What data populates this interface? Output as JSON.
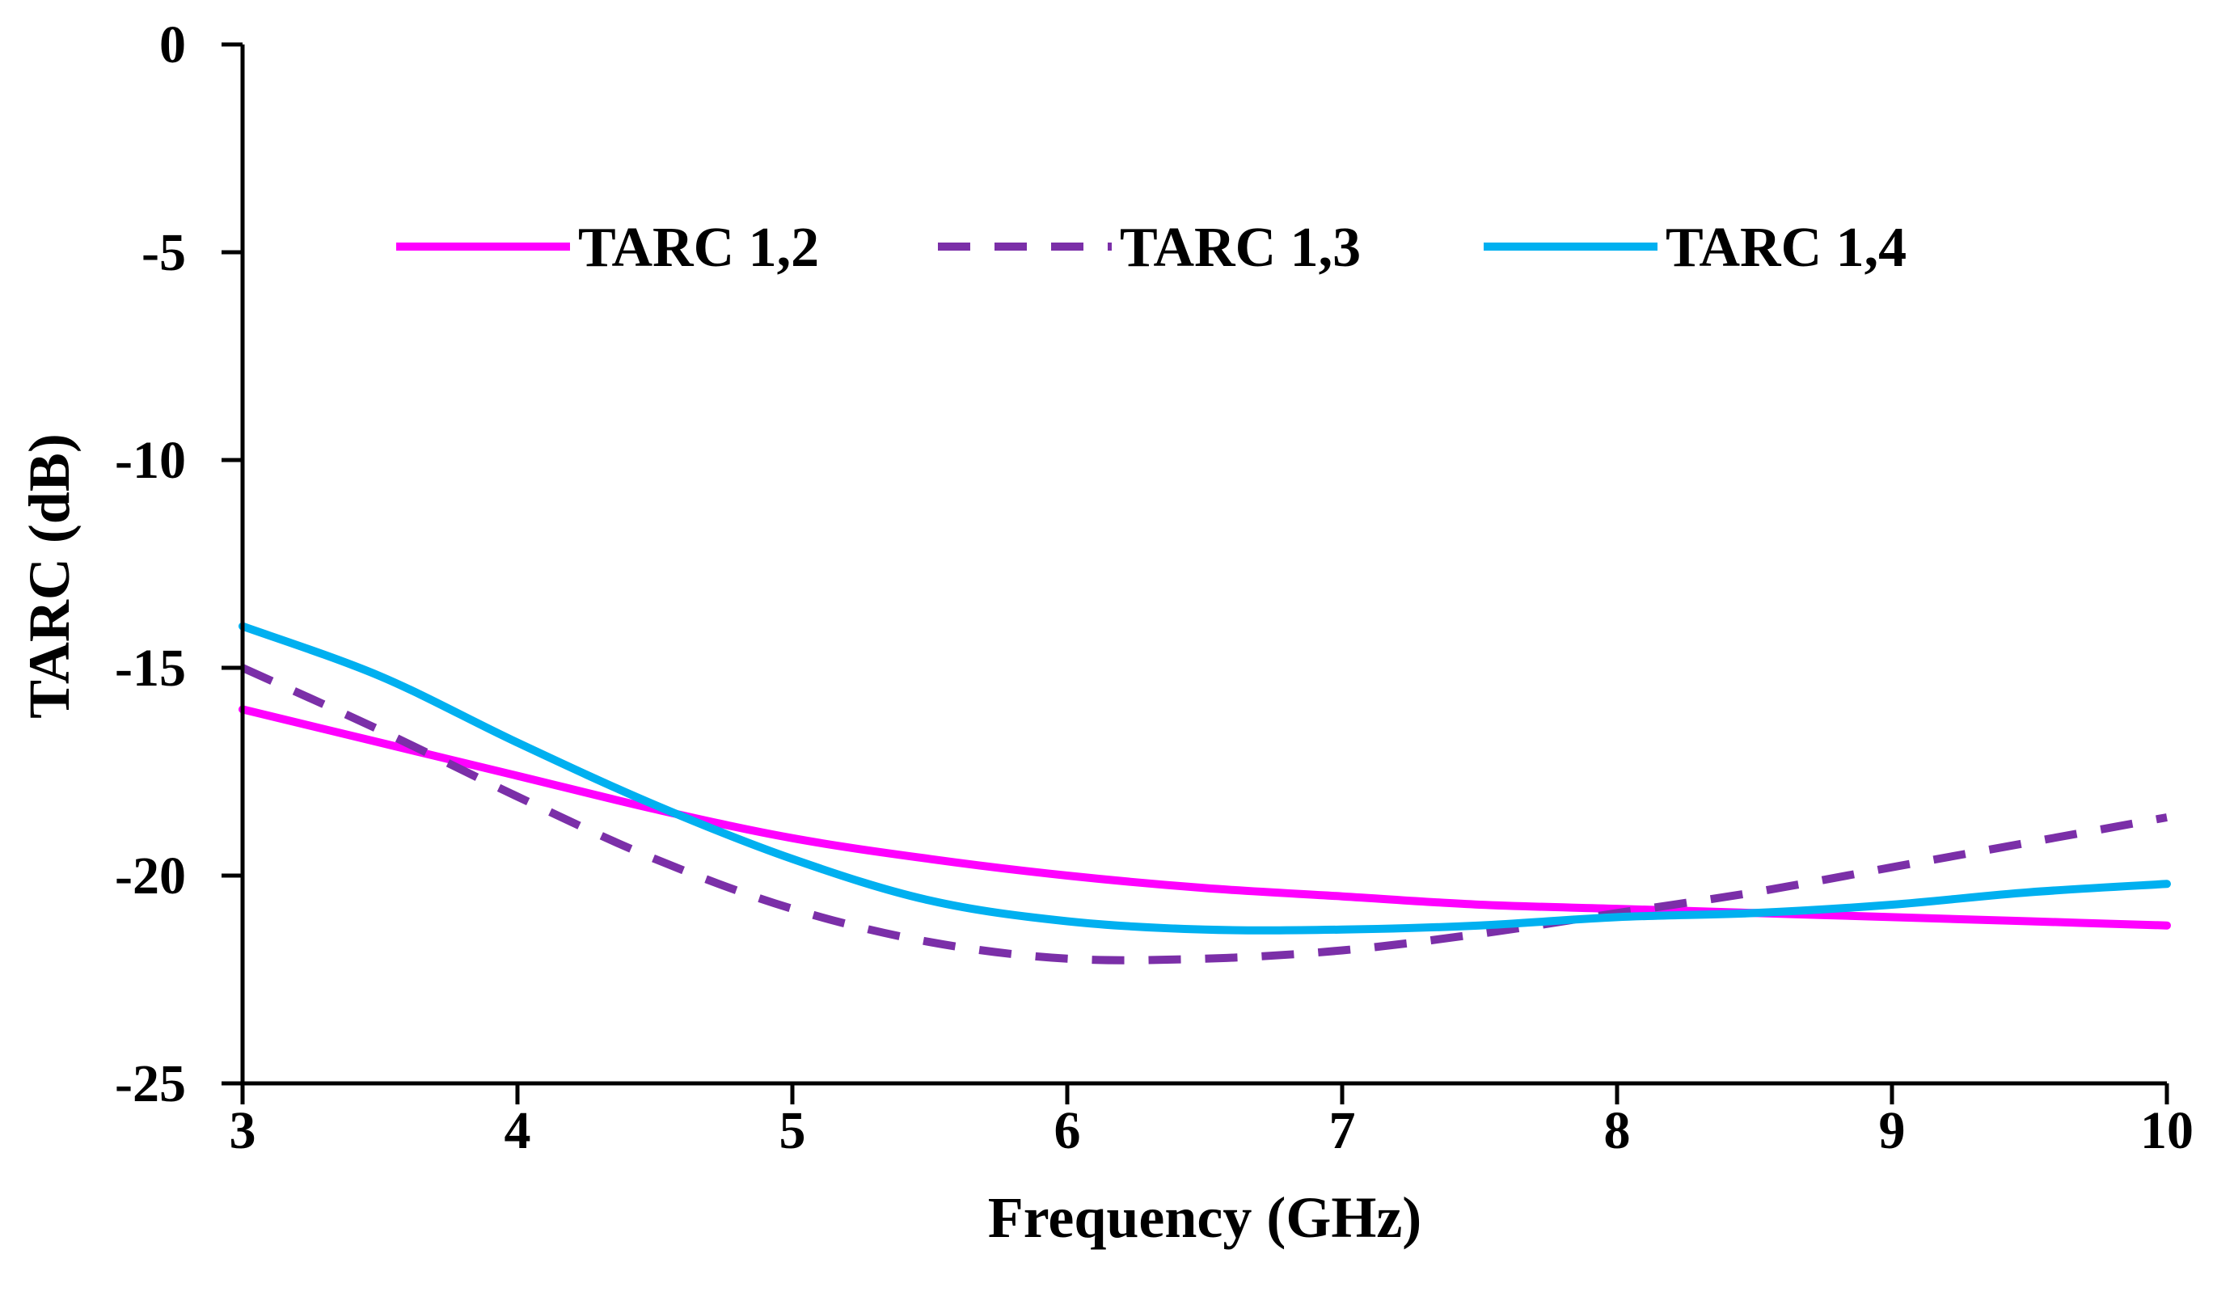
{
  "chart_data": {
    "type": "line",
    "title": "",
    "xlabel": "Frequency (GHz)",
    "ylabel": "TARC (dB)",
    "xlim": [
      3,
      10
    ],
    "ylim": [
      -25,
      0
    ],
    "xticks": [
      3,
      4,
      5,
      6,
      7,
      8,
      9,
      10
    ],
    "yticks": [
      0,
      -5,
      -10,
      -15,
      -20,
      -25
    ],
    "xtick_labels": [
      "3",
      "4",
      "5",
      "6",
      "7",
      "8",
      "9",
      "10"
    ],
    "ytick_labels": [
      "0",
      "-5",
      "-10",
      "-15",
      "-20",
      "-25"
    ],
    "grid": false,
    "legend_position": "top",
    "series": [
      {
        "name": "TARC 1,2",
        "color": "#FF00FF",
        "dash": "solid",
        "x": [
          3,
          3.5,
          4,
          4.5,
          5,
          5.5,
          6,
          6.5,
          7,
          7.5,
          8,
          8.5,
          9,
          9.5,
          10
        ],
        "y": [
          -16.0,
          -16.8,
          -17.6,
          -18.4,
          -19.1,
          -19.6,
          -20.0,
          -20.3,
          -20.5,
          -20.7,
          -20.8,
          -20.9,
          -21.0,
          -21.1,
          -21.2
        ]
      },
      {
        "name": "TARC 1,3",
        "color": "#7B2FA8",
        "dash": "dashed",
        "x": [
          3,
          3.5,
          4,
          4.5,
          5,
          5.5,
          6,
          6.5,
          7,
          7.5,
          8,
          8.5,
          9,
          9.5,
          10
        ],
        "y": [
          -15.0,
          -16.5,
          -18.1,
          -19.6,
          -20.8,
          -21.6,
          -22.0,
          -22.0,
          -21.8,
          -21.4,
          -20.9,
          -20.4,
          -19.8,
          -19.2,
          -18.6
        ]
      },
      {
        "name": "TARC 1,4",
        "color": "#00B0F0",
        "dash": "solid",
        "x": [
          3,
          3.5,
          4,
          4.5,
          5,
          5.5,
          6,
          6.5,
          7,
          7.5,
          8,
          8.5,
          9,
          9.5,
          10
        ],
        "y": [
          -14.0,
          -15.2,
          -16.8,
          -18.3,
          -19.6,
          -20.6,
          -21.1,
          -21.3,
          -21.3,
          -21.2,
          -21.0,
          -20.9,
          -20.7,
          -20.4,
          -20.2
        ]
      }
    ]
  }
}
